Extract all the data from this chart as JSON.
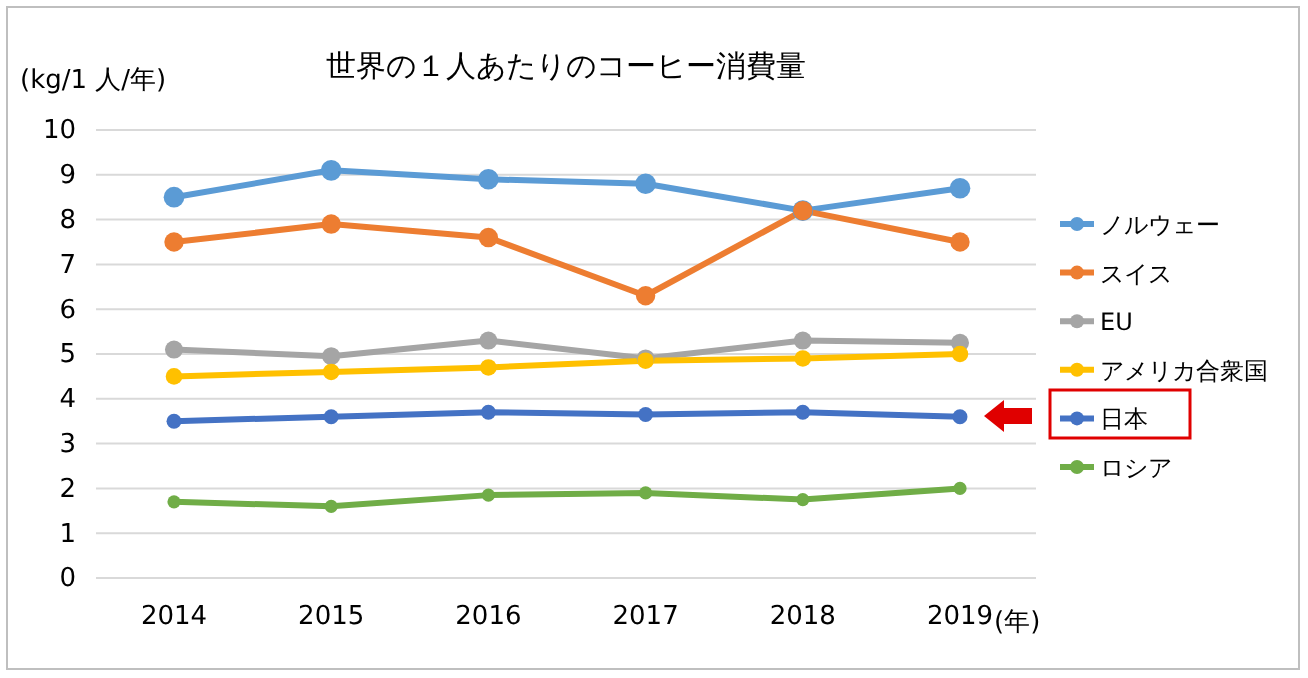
{
  "chart_data": {
    "type": "line",
    "title": "世界の１人あたりのコーヒー消費量",
    "ylabel": "(kg/1 人/年)",
    "xlabel": "(年)",
    "categories": [
      "2014",
      "2015",
      "2016",
      "2017",
      "2018",
      "2019"
    ],
    "series": [
      {
        "name": "ノルウェー",
        "color": "#5b9bd5",
        "values": [
          8.5,
          9.1,
          8.9,
          8.8,
          8.2,
          8.7
        ]
      },
      {
        "name": "スイス",
        "color": "#ed7d31",
        "values": [
          7.5,
          7.9,
          7.6,
          6.3,
          8.2,
          7.5
        ]
      },
      {
        "name": "EU",
        "color": "#a5a5a5",
        "values": [
          5.1,
          4.95,
          5.3,
          4.9,
          5.3,
          5.25
        ]
      },
      {
        "name": "アメリカ合衆国",
        "color": "#ffc000",
        "values": [
          4.5,
          4.6,
          4.7,
          4.85,
          4.9,
          5.0
        ]
      },
      {
        "name": "日本",
        "color": "#4472c4",
        "values": [
          3.5,
          3.6,
          3.7,
          3.65,
          3.7,
          3.6
        ]
      },
      {
        "name": "ロシア",
        "color": "#70ad47",
        "values": [
          1.7,
          1.6,
          1.85,
          1.9,
          1.75,
          2.0
        ]
      }
    ],
    "ylim": [
      0,
      10
    ],
    "yticks": [
      0,
      1,
      2,
      3,
      4,
      5,
      6,
      7,
      8,
      9,
      10
    ],
    "grid": "y",
    "legend": "right",
    "marker": "circle",
    "line_style": "solid"
  }
}
